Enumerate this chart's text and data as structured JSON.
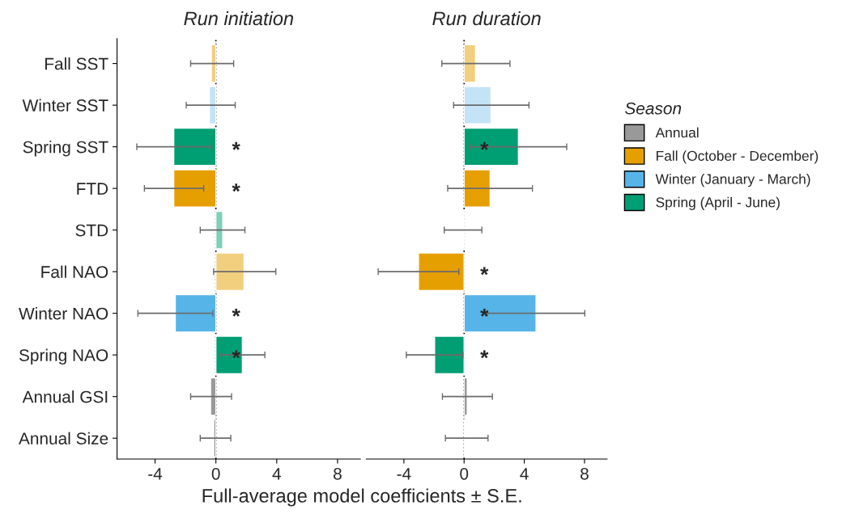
{
  "chart_data": [
    {
      "type": "bar",
      "orientation": "horizontal",
      "title": "Run initiation",
      "xlabel": "Full-average model coefficients ± S.E.",
      "categories": [
        "Fall SST",
        "Winter SST",
        "Spring SST",
        "FTD",
        "STD",
        "Fall NAO",
        "Winter NAO",
        "Spring NAO",
        "Annual GSI",
        "Annual Size"
      ],
      "series": [
        {
          "colors": [
            null,
            null,
            null,
            null,
            null,
            null,
            null,
            null,
            "#999999",
            "#999999"
          ],
          "values": [
            null,
            null,
            null,
            null,
            null,
            null,
            null,
            null,
            -0.35,
            -0.14
          ],
          "errors": [
            null,
            null,
            null,
            null,
            null,
            null,
            null,
            null,
            [
              -1.66,
              1.03
            ],
            [
              -1.03,
              0.98
            ]
          ]
        },
        {
          "colors": [
            "#f2cf7f",
            null,
            null,
            "#e69f00",
            null,
            "#f2cf7f",
            null,
            null,
            null,
            null
          ],
          "values": [
            -0.3,
            null,
            null,
            -2.77,
            null,
            1.85,
            null,
            null,
            null,
            null
          ],
          "value_labels": [
            null,
            null,
            null,
            "*",
            null,
            null,
            null,
            null,
            null,
            null
          ],
          "errors": [
            [
              -1.66,
              1.17
            ],
            null,
            null,
            [
              -4.7,
              -0.8
            ],
            null,
            [
              -0.15,
              3.94
            ],
            null,
            null,
            null,
            null
          ]
        },
        {
          "colors": [
            null,
            "#c4e3f6",
            null,
            null,
            null,
            null,
            "#56b4e9",
            null,
            null,
            null
          ],
          "values": [
            null,
            -0.43,
            null,
            null,
            null,
            null,
            -2.67,
            null,
            null,
            null
          ],
          "value_labels": [
            null,
            null,
            null,
            null,
            null,
            null,
            "*",
            null,
            null,
            null
          ],
          "errors": [
            null,
            [
              -1.95,
              1.27
            ],
            null,
            null,
            null,
            null,
            [
              -5.13,
              -0.2
            ],
            null,
            null,
            null
          ]
        },
        {
          "colors": [
            null,
            null,
            "#009e73",
            null,
            "#7fcfb9",
            null,
            null,
            "#009e73",
            null,
            null
          ],
          "values": [
            null,
            null,
            -2.77,
            null,
            0.45,
            null,
            null,
            1.74,
            null,
            null
          ],
          "value_labels": [
            null,
            null,
            "*",
            null,
            null,
            null,
            null,
            "*",
            null,
            null
          ],
          "errors": [
            null,
            null,
            [
              -5.2,
              -0.3
            ],
            null,
            [
              -1.03,
              1.91
            ],
            null,
            null,
            [
              0.26,
              3.22
            ],
            null,
            null
          ]
        }
      ],
      "xlim": [
        -6.5,
        9.5
      ],
      "xticks": [
        -4,
        0,
        4,
        8
      ],
      "grid": false,
      "legend": false,
      "ref_lines": [
        {
          "axis": "x",
          "value": 0,
          "line_style": "dotted",
          "color": "#000000"
        }
      ]
    },
    {
      "type": "bar",
      "orientation": "horizontal",
      "title": "Run duration",
      "legend_title": "Season",
      "tick_labels": "x",
      "series": [
        {
          "name": "Annual",
          "color": "#999999",
          "colors": [
            null,
            null,
            null,
            null,
            null,
            null,
            null,
            null,
            "#999999",
            "#999999"
          ],
          "values": [
            null,
            null,
            null,
            null,
            null,
            null,
            null,
            null,
            0.21,
            0.05
          ],
          "errors": [
            null,
            null,
            null,
            null,
            null,
            null,
            null,
            null,
            [
              -1.44,
              1.88
            ],
            [
              -1.24,
              1.59
            ]
          ]
        },
        {
          "name": "Fall (October - December)",
          "color": "#e69f00",
          "colors": [
            "#f2cf7f",
            null,
            null,
            "#e69f00",
            null,
            "#e69f00",
            null,
            null,
            null,
            null
          ],
          "values": [
            0.76,
            null,
            null,
            1.73,
            null,
            -3.03,
            null,
            null,
            null,
            null
          ],
          "value_labels": [
            null,
            null,
            null,
            null,
            null,
            "*",
            null,
            null,
            null,
            null
          ],
          "errors": [
            [
              -1.48,
              3.05
            ],
            null,
            null,
            [
              -1.09,
              4.54
            ],
            null,
            [
              -5.71,
              -0.35
            ],
            null,
            null,
            null,
            null
          ]
        },
        {
          "name": "Winter (January - March)",
          "color": "#56b4e9",
          "colors": [
            null,
            "#c4e3f6",
            null,
            null,
            null,
            null,
            "#56b4e9",
            null,
            null,
            null
          ],
          "values": [
            null,
            1.79,
            null,
            null,
            null,
            null,
            4.78,
            null,
            null,
            null
          ],
          "value_labels": [
            null,
            null,
            null,
            null,
            null,
            null,
            "*",
            null,
            null,
            null
          ],
          "errors": [
            null,
            [
              -0.7,
              4.31
            ],
            null,
            null,
            null,
            null,
            [
              1.54,
              8.02
            ],
            null,
            null,
            null
          ]
        },
        {
          "name": "Spring (April - June)",
          "color": "#009e73",
          "colors": [
            null,
            null,
            "#009e73",
            null,
            "#009e73",
            null,
            null,
            "#009e73",
            null,
            null
          ],
          "values": [
            null,
            null,
            3.61,
            null,
            -0.05,
            null,
            null,
            -1.96,
            null,
            null
          ],
          "value_labels": [
            null,
            null,
            "*",
            null,
            null,
            null,
            null,
            "*",
            null,
            null
          ],
          "errors": [
            null,
            null,
            [
              0.4,
              6.82
            ],
            null,
            [
              -1.32,
              1.18
            ],
            null,
            null,
            [
              -3.84,
              -0.08
            ],
            null,
            null
          ]
        }
      ],
      "xlim": [
        -6.5,
        9.5
      ],
      "xticks": [
        -4,
        0,
        4,
        8
      ],
      "grid": false,
      "legend": "right",
      "ref_lines": [
        {
          "axis": "x",
          "value": 0,
          "line_style": "dotted",
          "color": "#000000"
        }
      ]
    }
  ]
}
